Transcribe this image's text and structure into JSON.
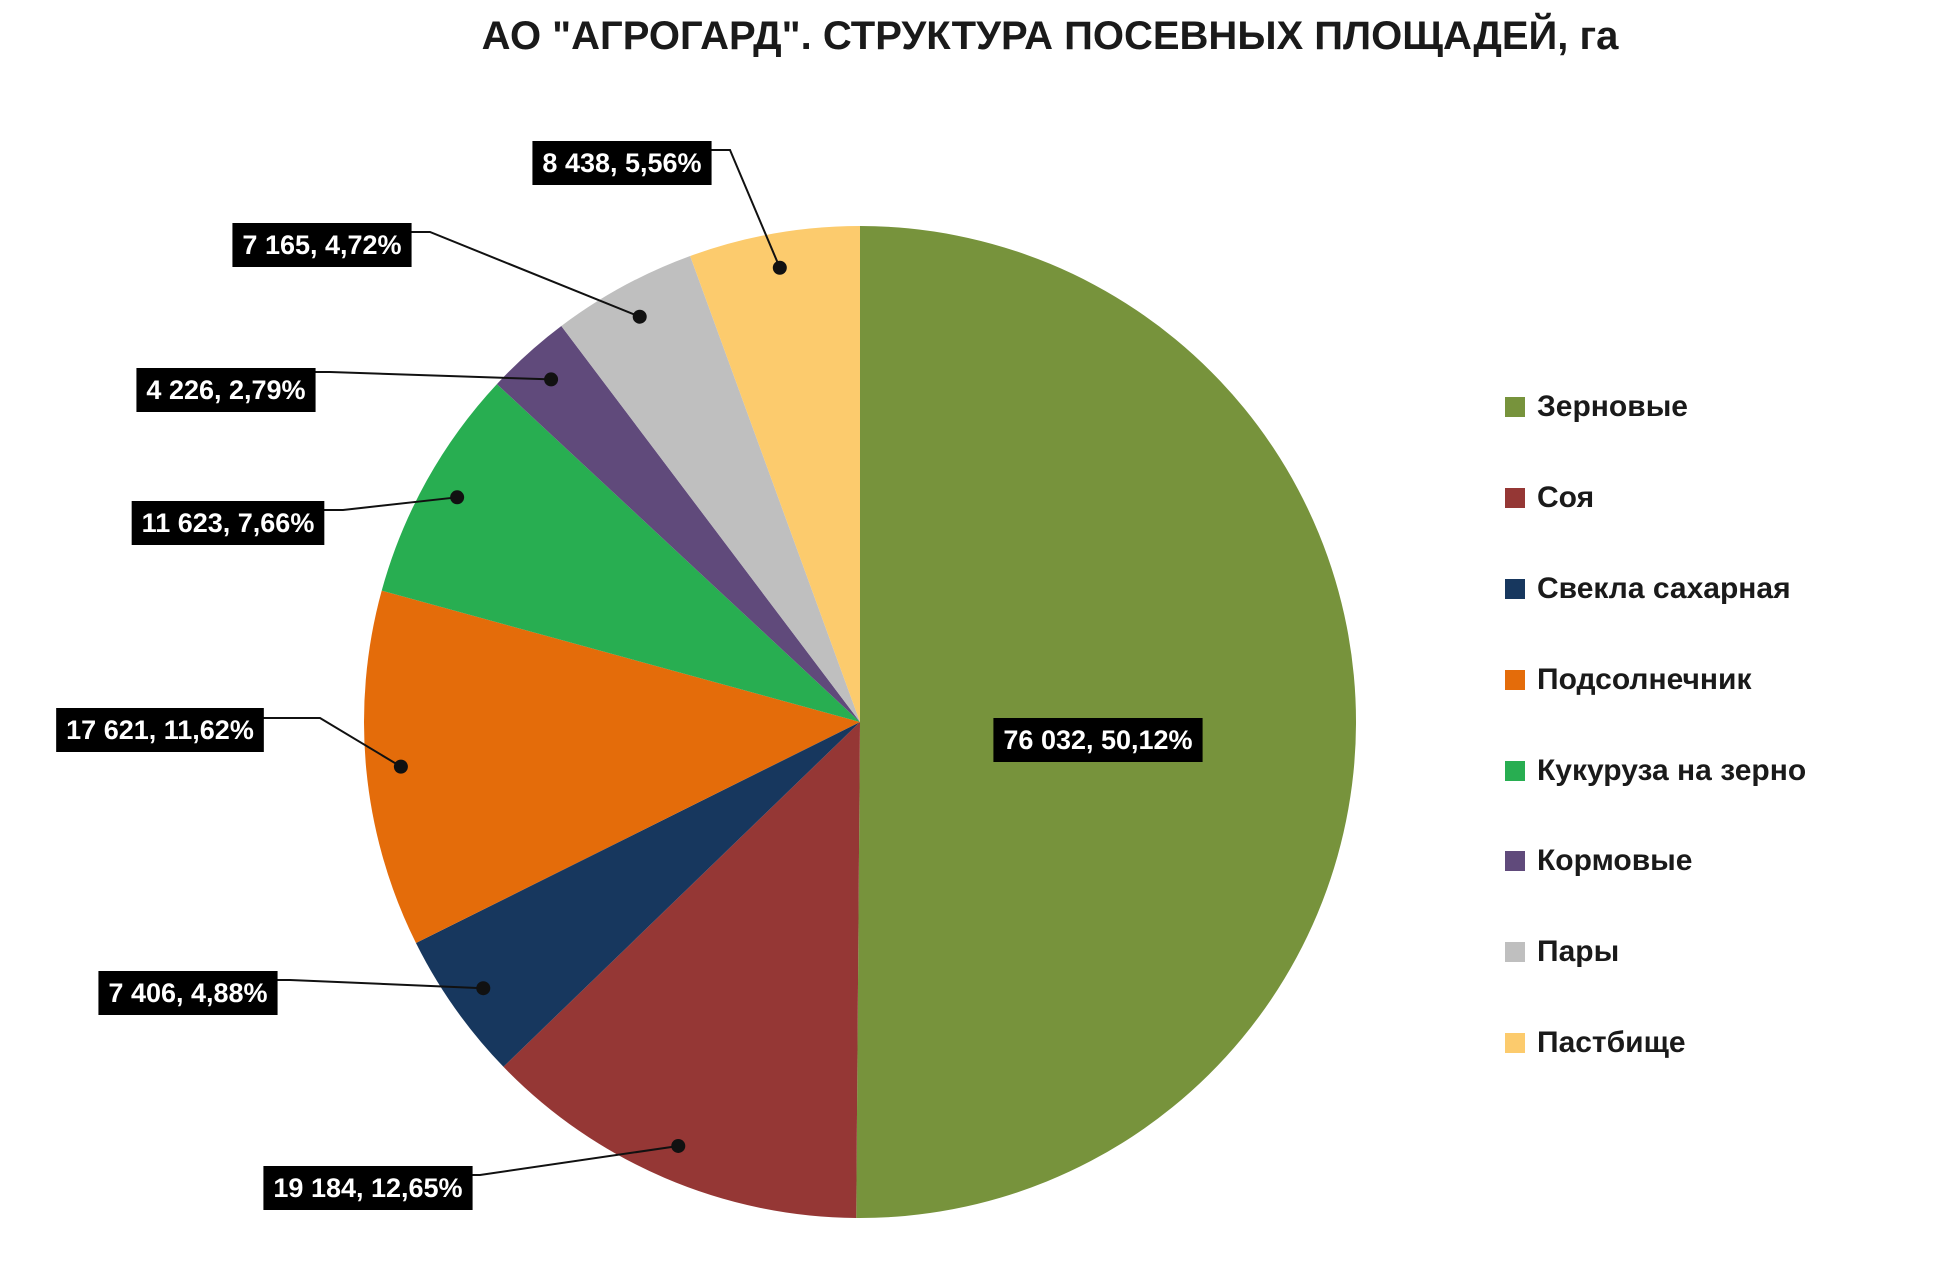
{
  "chart_data": {
    "type": "pie",
    "title": "АО \"АГРОГАРД\". СТРУКТУРА ПОСЕВНЫХ ПЛОЩАДЕЙ, га",
    "legend_position": "right",
    "categories": [
      "Зерновые",
      "Соя",
      "Свекла сахарная",
      "Подсолнечник",
      "Кукуруза на зерно",
      "Кормовые",
      "Пары",
      "Пастбище"
    ],
    "values": [
      76032,
      19184,
      7406,
      17621,
      11623,
      4226,
      7165,
      8438
    ],
    "percents": [
      50.12,
      12.65,
      4.88,
      11.62,
      7.66,
      2.79,
      4.72,
      5.56
    ],
    "data_labels": [
      "76 032,  50,12%",
      "19 184,  12,65%",
      "7 406,  4,88%",
      "17 621,  11,62%",
      "11 623,  7,66%",
      "4 226,  2,79%",
      "7 165,  4,72%",
      "8 438,  5,56%"
    ],
    "colors": [
      "#77933C",
      "#953735",
      "#17375E",
      "#E46C0A",
      "#28AE51",
      "#604A7B",
      "#BFBFBF",
      "#FCCB6D"
    ]
  }
}
